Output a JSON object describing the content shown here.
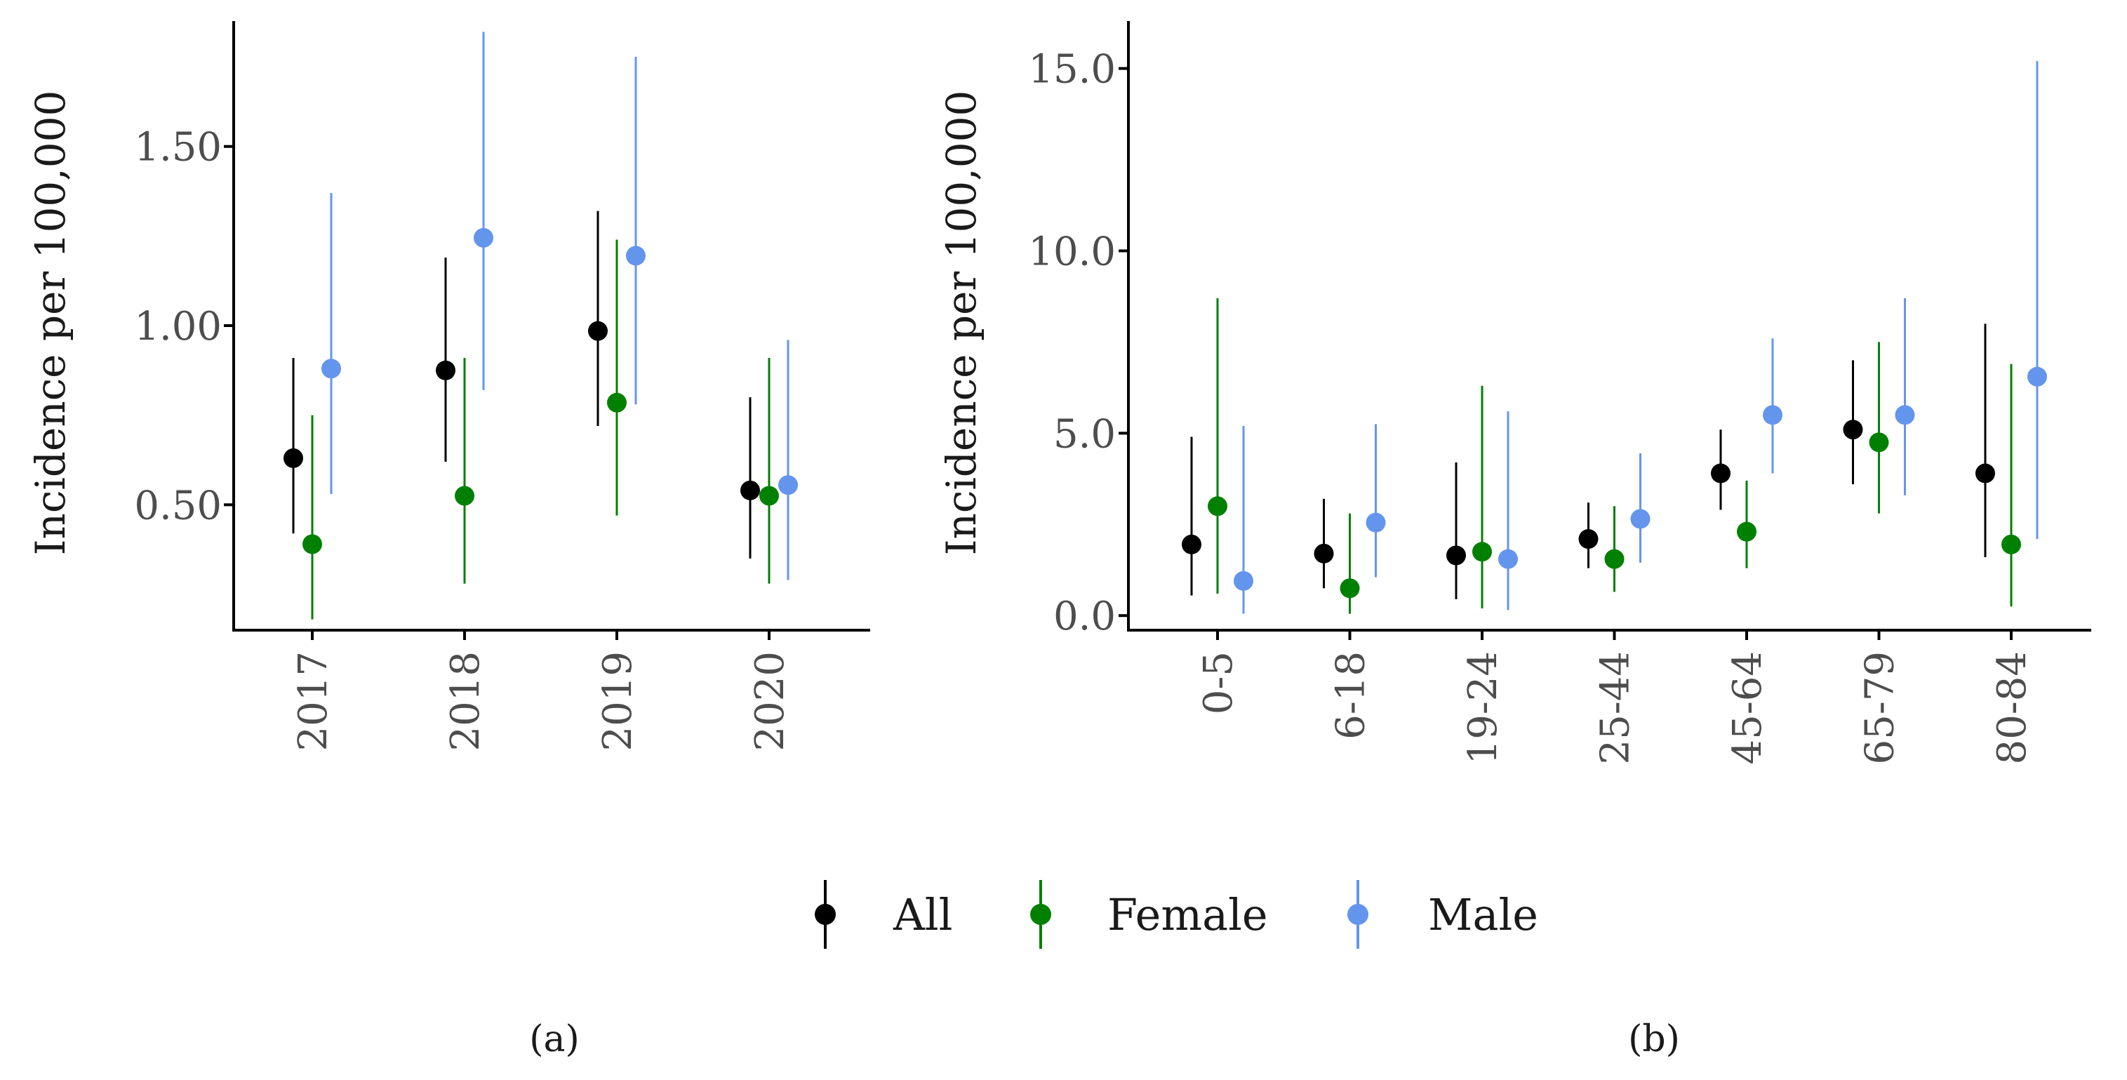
{
  "colors": {
    "All": "#000000",
    "Female": "#008000",
    "Male": "#6495ED",
    "axis": "#000000",
    "tick_text": "#4d4d4d"
  },
  "legend": {
    "items": [
      "All",
      "Female",
      "Male"
    ]
  },
  "chart_data": [
    {
      "type": "scatter",
      "panel_label": "(a)",
      "ylabel": "Incidence per 100,000",
      "xlabel": "",
      "categories": [
        "2017",
        "2018",
        "2019",
        "2020"
      ],
      "yticks": [
        0.5,
        1.0,
        1.5
      ],
      "ytick_labels": [
        "0.50",
        "1.00",
        "1.50"
      ],
      "ylim": [
        0.15,
        1.85
      ],
      "series": [
        {
          "name": "All",
          "values": [
            0.63,
            0.875,
            0.985,
            0.54
          ],
          "lower": [
            0.42,
            0.62,
            0.72,
            0.35
          ],
          "upper": [
            0.91,
            1.19,
            1.32,
            0.8
          ]
        },
        {
          "name": "Female",
          "values": [
            0.39,
            0.525,
            0.785,
            0.525
          ],
          "lower": [
            0.18,
            0.28,
            0.47,
            0.28
          ],
          "upper": [
            0.75,
            0.91,
            1.24,
            0.91
          ]
        },
        {
          "name": "Male",
          "values": [
            0.88,
            1.245,
            1.195,
            0.555
          ],
          "lower": [
            0.53,
            0.82,
            0.78,
            0.29
          ],
          "upper": [
            1.37,
            1.82,
            1.75,
            0.96
          ]
        }
      ]
    },
    {
      "type": "scatter",
      "panel_label": "(b)",
      "ylabel": "Incidence per 100,000",
      "xlabel": "",
      "categories": [
        "0-5",
        "6-18",
        "19-24",
        "25-44",
        "45-64",
        "65-79",
        "80-84"
      ],
      "yticks": [
        0,
        5,
        10,
        15
      ],
      "ytick_labels": [
        "0.0",
        "5.0",
        "10.0",
        "15.0"
      ],
      "ylim": [
        -0.4,
        16.3
      ],
      "series": [
        {
          "name": "All",
          "values": [
            1.95,
            1.7,
            1.65,
            2.1,
            3.9,
            5.1,
            3.9
          ],
          "lower": [
            0.55,
            0.75,
            0.45,
            1.3,
            2.9,
            3.6,
            1.6
          ],
          "upper": [
            4.9,
            3.2,
            4.2,
            3.1,
            5.1,
            7.0,
            8.0
          ]
        },
        {
          "name": "Female",
          "values": [
            3.0,
            0.75,
            1.75,
            1.55,
            2.3,
            4.75,
            1.95
          ],
          "lower": [
            0.6,
            0.05,
            0.2,
            0.65,
            1.3,
            2.8,
            0.25
          ],
          "upper": [
            8.7,
            2.8,
            6.3,
            3.0,
            3.7,
            7.5,
            6.9
          ]
        },
        {
          "name": "Male",
          "values": [
            0.95,
            2.55,
            1.55,
            2.65,
            5.5,
            5.5,
            6.55
          ],
          "lower": [
            0.05,
            1.05,
            0.15,
            1.45,
            3.9,
            3.3,
            2.1
          ],
          "upper": [
            5.2,
            5.25,
            5.6,
            4.45,
            7.6,
            8.7,
            15.2
          ]
        }
      ]
    }
  ]
}
